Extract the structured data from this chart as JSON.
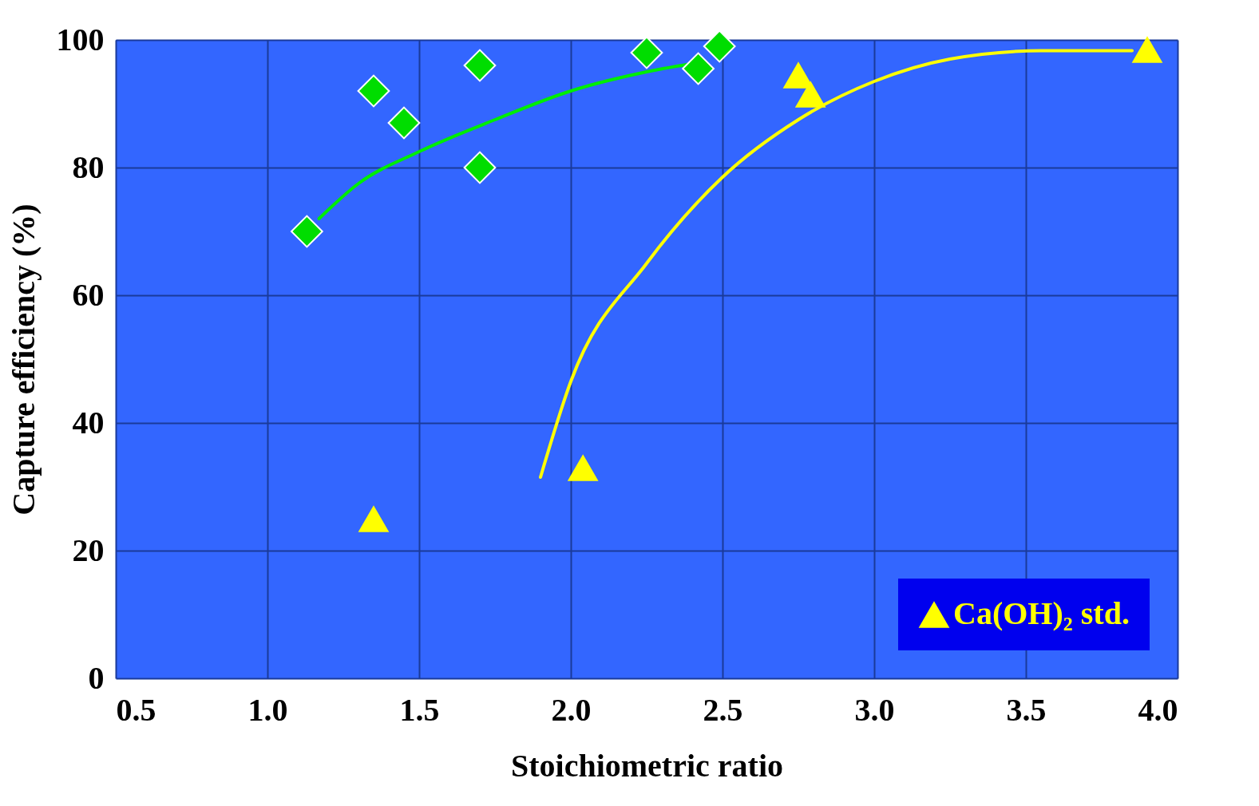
{
  "chart_data": {
    "type": "scatter",
    "xlabel": "Stoichiometric ratio",
    "ylabel": "Capture efficiency (%)",
    "xlim": [
      0.5,
      4.0
    ],
    "xticks": [
      {
        "value": 0.5,
        "label": "0.5"
      },
      {
        "value": 1,
        "label": "1.0"
      },
      {
        "value": 1.5,
        "label": "1.5"
      },
      {
        "value": 2,
        "label": "2.0"
      },
      {
        "value": 2.5,
        "label": "2.5"
      },
      {
        "value": 3,
        "label": "3.0"
      },
      {
        "value": 3.5,
        "label": "3.5"
      },
      {
        "value": 4,
        "label": "4.0"
      }
    ],
    "ylim": [
      0,
      100
    ],
    "yticks": [
      0,
      20,
      40,
      60,
      80,
      100
    ],
    "grid": true,
    "legend": "bottom right",
    "series": [
      {
        "marker": "diamond",
        "color": "#00dd00",
        "x": [
          1.13,
          1.35,
          1.45,
          1.7,
          1.7,
          2.25,
          2.42,
          2.49
        ],
        "values": [
          70,
          92,
          87,
          96,
          80,
          98,
          95.5,
          99
        ]
      },
      {
        "marker": "triangle",
        "name": "Ca(OH)₂ std.",
        "color": "#ffff00",
        "x": [
          1.35,
          2.04,
          2.75,
          2.79,
          3.9
        ],
        "values": [
          25,
          33,
          94.5,
          91.5,
          98.5
        ]
      },
      {
        "type": "line",
        "color": "#00ee00",
        "x": [
          1.17,
          1.3,
          1.5,
          1.75,
          2.0,
          2.25,
          2.43
        ],
        "values": [
          72,
          77.5,
          82.5,
          87.5,
          92,
          95,
          96.5
        ]
      },
      {
        "type": "line",
        "color": "#ffff00",
        "x": [
          1.9,
          2.0,
          2.25,
          2.5,
          2.75,
          3.0,
          3.25,
          3.55,
          3.85
        ],
        "values": [
          31.5,
          46.5,
          65,
          78.5,
          87.5,
          93.5,
          97,
          98.3,
          98.3
        ]
      }
    ]
  }
}
